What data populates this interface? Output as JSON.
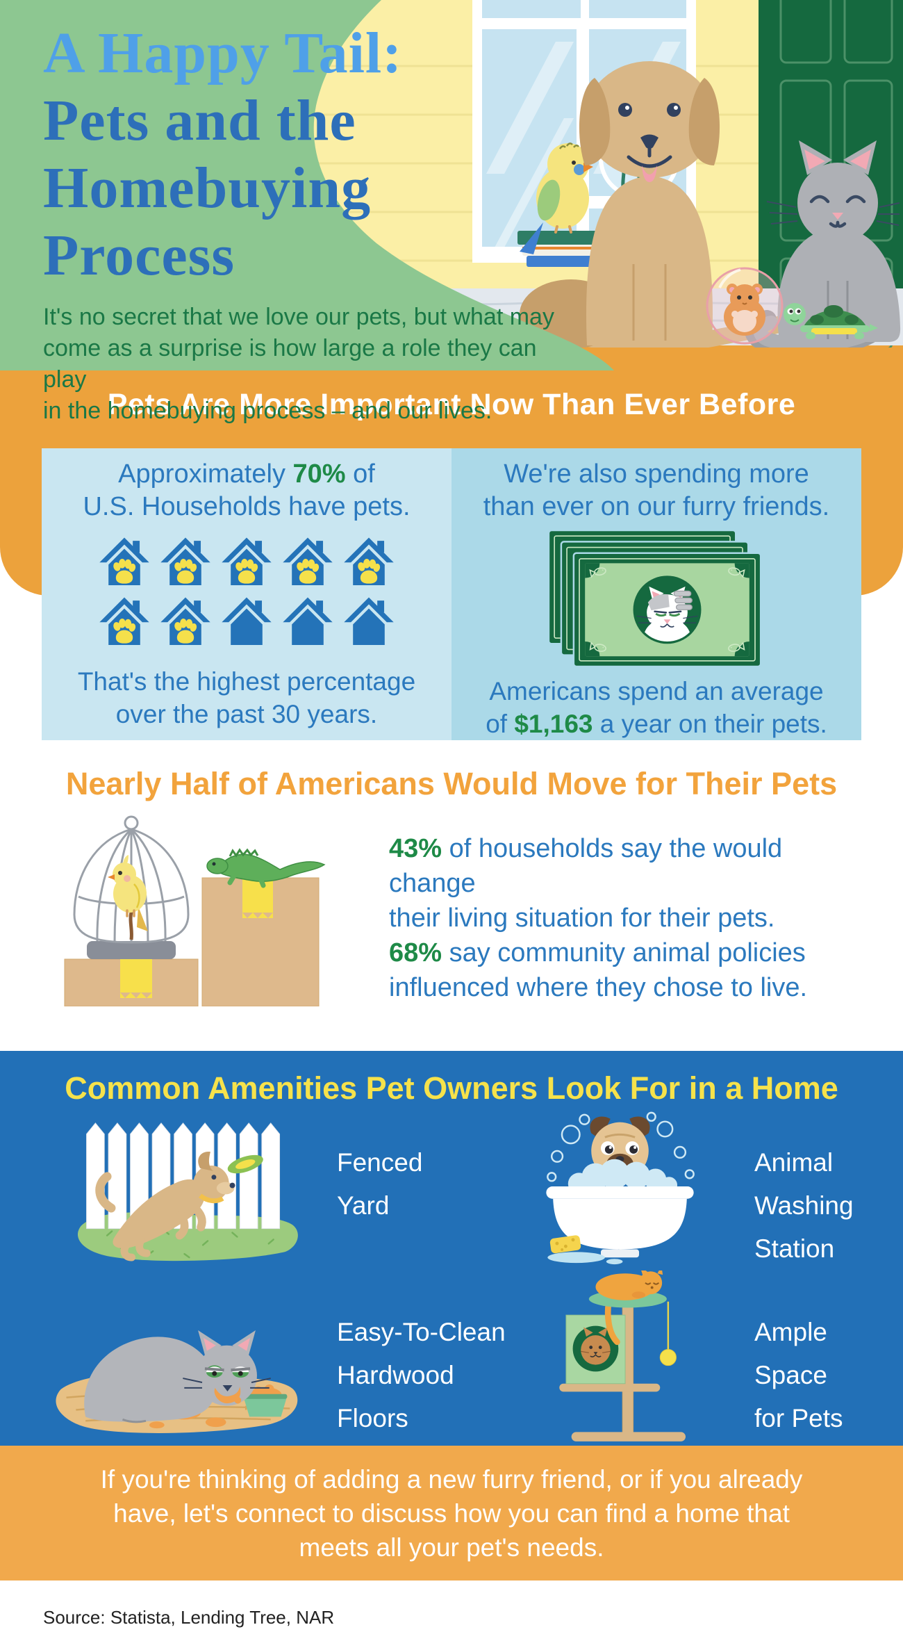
{
  "header": {
    "title_line1": "A Happy Tail:",
    "title_line2": "Pets and the",
    "title_line3": "Homebuying Process",
    "intro_lines": [
      "It's no secret that we love our pets, but what may",
      "come as a surprise is how large a role they can play",
      "in the homebuying process – and our lives."
    ]
  },
  "importance": {
    "title": "Pets Are More Important Now Than Ever Before",
    "left": {
      "line1_prefix": "Approximately ",
      "line1_stat": "70%",
      "line1_suffix": " of",
      "line2": "U.S. Households have pets.",
      "pictogram": {
        "type": "pictogram",
        "icon": "house-with-paw-icon",
        "total": 10,
        "with_paw": 7,
        "depicts_percent": 70
      },
      "caption_line1": "That's the highest percentage",
      "caption_line2": "over the past 30 years."
    },
    "right": {
      "line1": "We're also spending more",
      "line2": "than ever on our furry friends.",
      "caption_line1": "Americans spend an average",
      "caption_line2_prefix": "of ",
      "caption_stat": "$1,163",
      "caption_line2_suffix": " a year on their pets."
    }
  },
  "move": {
    "title": "Nearly Half of Americans Would Move for Their Pets",
    "stat1_value": "43%",
    "stat1_rest": " of households say the would change",
    "stat1_line2": "their living situation for their pets.",
    "stat2_value": "68%",
    "stat2_rest": " say community animal policies",
    "stat2_line2": "influenced where they chose to live."
  },
  "amenities": {
    "title": "Common Amenities Pet Owners Look For in a Home",
    "items": [
      {
        "icon": "fenced-yard-icon",
        "line1": "Fenced",
        "line2": "Yard",
        "line3": ""
      },
      {
        "icon": "animal-washing-station-icon",
        "line1": "Animal",
        "line2": "Washing",
        "line3": "Station"
      },
      {
        "icon": "hardwood-floors-icon",
        "line1": "Easy-To-Clean",
        "line2": "Hardwood",
        "line3": "Floors"
      },
      {
        "icon": "cat-tree-icon",
        "line1": "Ample",
        "line2": "Space",
        "line3": "for Pets"
      }
    ]
  },
  "footer": {
    "cta_lines": [
      "If you're thinking of adding a new furry friend, or if you already",
      "have, let's connect to discuss how you can find a home that",
      "meets all your pet's needs."
    ],
    "source": "Source: Statista, Lending Tree, NAR"
  },
  "colors": {
    "accent_orange": "#ECA23C",
    "footer_orange": "#F1A94C",
    "section_blue": "#2270B7",
    "title_yellow": "#F6E24B",
    "panel_blue_left": "#C9E6F1",
    "panel_blue_right": "#ABD9E8",
    "text_blue": "#2B79BE",
    "stat_green": "#1E8A47",
    "header_light_blue": "#4FA0E8",
    "header_dark_blue": "#2D6FB9",
    "intro_green": "#1A7846",
    "blob_green": "#8DC791"
  }
}
